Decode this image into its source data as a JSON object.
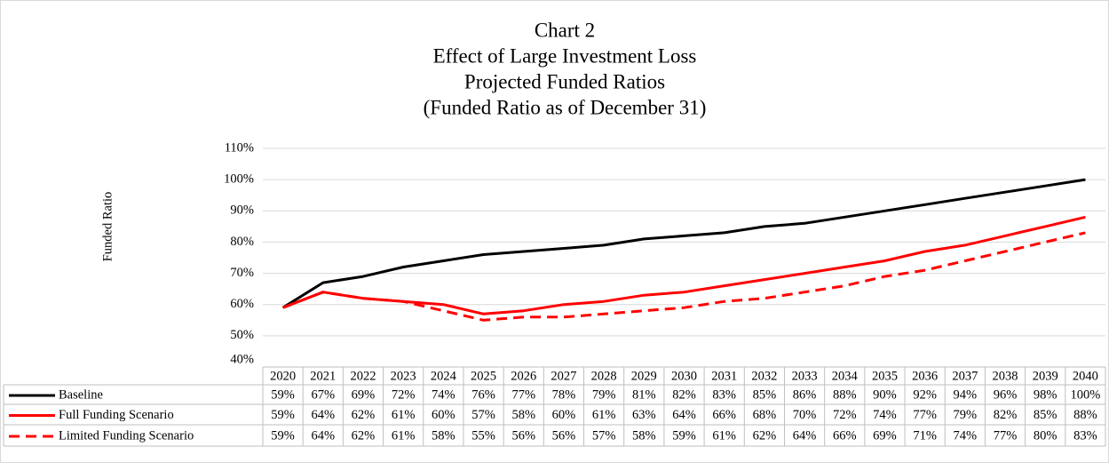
{
  "chart_data": {
    "type": "line",
    "title": [
      "Chart 2",
      "Effect of Large Investment Loss",
      "Projected Funded Ratios",
      "(Funded Ratio as of December 31)"
    ],
    "y_label": "Funded Ratio",
    "categories": [
      "2020",
      "2021",
      "2022",
      "2023",
      "2024",
      "2025",
      "2026",
      "2027",
      "2028",
      "2029",
      "2030",
      "2031",
      "2032",
      "2033",
      "2034",
      "2035",
      "2036",
      "2037",
      "2038",
      "2039",
      "2040"
    ],
    "series": [
      {
        "name": "Baseline",
        "color": "#000000",
        "line_style": "solid",
        "values": [
          59,
          67,
          69,
          72,
          74,
          76,
          77,
          78,
          79,
          81,
          82,
          83,
          85,
          86,
          88,
          90,
          92,
          94,
          96,
          98,
          100
        ],
        "value_labels": [
          "59%",
          "67%",
          "69%",
          "72%",
          "74%",
          "76%",
          "77%",
          "78%",
          "79%",
          "81%",
          "82%",
          "83%",
          "85%",
          "86%",
          "88%",
          "90%",
          "92%",
          "94%",
          "96%",
          "98%",
          "100%"
        ]
      },
      {
        "name": "Full Funding Scenario",
        "color": "#ff0000",
        "line_style": "solid",
        "values": [
          59,
          64,
          62,
          61,
          60,
          57,
          58,
          60,
          61,
          63,
          64,
          66,
          68,
          70,
          72,
          74,
          77,
          79,
          82,
          85,
          88
        ],
        "value_labels": [
          "59%",
          "64%",
          "62%",
          "61%",
          "60%",
          "57%",
          "58%",
          "60%",
          "61%",
          "63%",
          "64%",
          "66%",
          "68%",
          "70%",
          "72%",
          "74%",
          "77%",
          "79%",
          "82%",
          "85%",
          "88%"
        ]
      },
      {
        "name": "Limited Funding Scenario",
        "color": "#ff0000",
        "line_style": "dashed",
        "values": [
          59,
          64,
          62,
          61,
          58,
          55,
          56,
          56,
          57,
          58,
          59,
          61,
          62,
          64,
          66,
          69,
          71,
          74,
          77,
          80,
          83
        ],
        "value_labels": [
          "59%",
          "64%",
          "62%",
          "61%",
          "58%",
          "55%",
          "56%",
          "56%",
          "57%",
          "58%",
          "59%",
          "61%",
          "62%",
          "64%",
          "66%",
          "69%",
          "71%",
          "74%",
          "77%",
          "80%",
          "83%"
        ]
      }
    ],
    "ylim": [
      40,
      110
    ],
    "yticks": [
      {
        "value": 40,
        "label": "40%"
      },
      {
        "value": 50,
        "label": "50%"
      },
      {
        "value": 60,
        "label": "60%"
      },
      {
        "value": 70,
        "label": "70%"
      },
      {
        "value": 80,
        "label": "80%"
      },
      {
        "value": 90,
        "label": "90%"
      },
      {
        "value": 100,
        "label": "100%"
      },
      {
        "value": 110,
        "label": "110%"
      }
    ],
    "grid": true,
    "data_table": true
  }
}
